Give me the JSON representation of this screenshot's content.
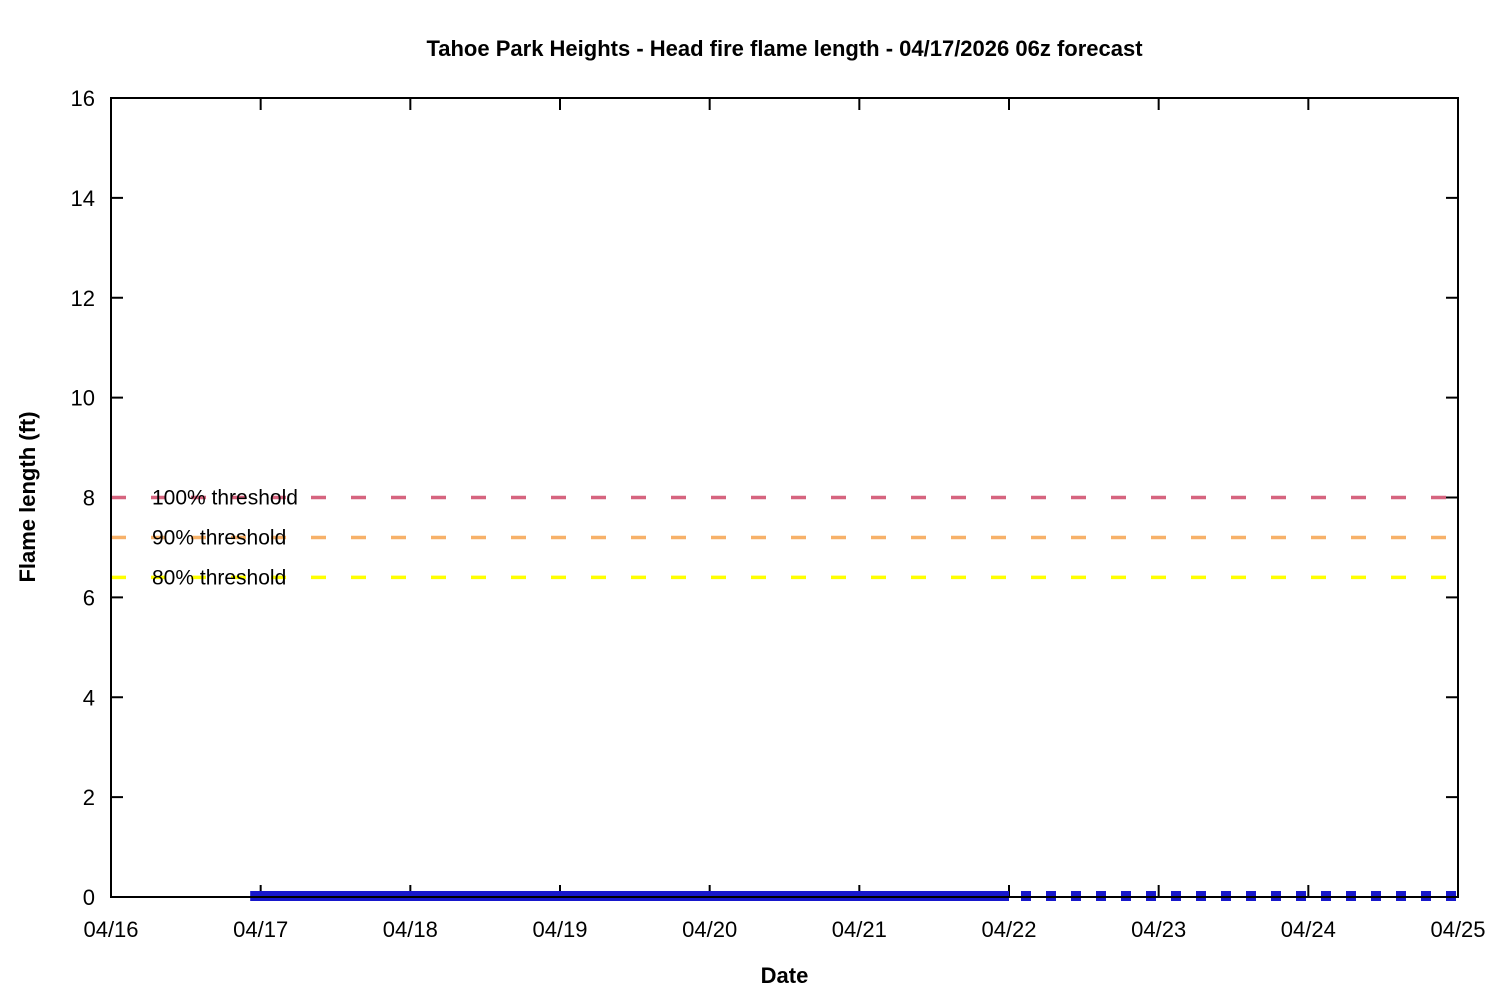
{
  "chart_data": {
    "type": "line",
    "title": "Tahoe Park Heights - Head fire flame length - 04/17/2026 06z forecast",
    "xlabel": "Date",
    "ylabel": "Flame length (ft)",
    "background_color": "#ffffff",
    "border_color": "#000000",
    "grid": false,
    "legend_position": "none",
    "x_tick_labels": [
      "04/16",
      "04/17",
      "04/18",
      "04/19",
      "04/20",
      "04/21",
      "04/22",
      "04/23",
      "04/24",
      "04/25"
    ],
    "x_range_days": [
      0,
      9
    ],
    "y_ticks": [
      0,
      2,
      4,
      6,
      8,
      10,
      12,
      14,
      16
    ],
    "ylim": [
      0,
      16
    ],
    "thresholds": [
      {
        "label": "100% threshold",
        "value": 8.0,
        "color": "#d6647f",
        "style": "dashed"
      },
      {
        "label": "90% threshold",
        "value": 7.2,
        "color": "#f7b169",
        "style": "dashed"
      },
      {
        "label": "80% threshold",
        "value": 6.4,
        "color": "#ffff00",
        "style": "dashed"
      }
    ],
    "series": [
      {
        "name": "flame-length-solid-segment",
        "style": "solid",
        "color": "#1717cb",
        "value": 0,
        "x_start_day": 0.93,
        "x_end_day": 6.0
      },
      {
        "name": "flame-length-dotted-segment",
        "style": "dotted",
        "color": "#1717cb",
        "value": 0,
        "x_start_day": 6.0,
        "x_end_day": 9.0
      }
    ]
  }
}
